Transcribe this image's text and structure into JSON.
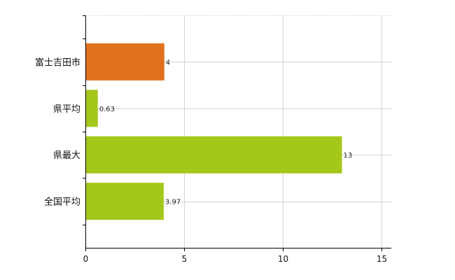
{
  "chart_data": {
    "type": "bar",
    "orientation": "horizontal",
    "categories": [
      "富士吉田市",
      "県平均",
      "県最大",
      "全国平均"
    ],
    "values": [
      4,
      0.63,
      13,
      3.97
    ],
    "value_labels": [
      "4",
      "0.63",
      "13",
      "3.97"
    ],
    "bar_colors": [
      "#e0711e",
      "#a3c81a",
      "#a3c81a",
      "#a3c81a"
    ],
    "x_ticks": [
      0,
      5,
      10,
      15
    ],
    "tick_labels": [
      "0",
      "5",
      "10",
      "15"
    ],
    "xlim": [
      0,
      15.5
    ],
    "grid": true,
    "grid_color": "#d3d3d3",
    "title": "",
    "xlabel": "",
    "ylabel": ""
  }
}
